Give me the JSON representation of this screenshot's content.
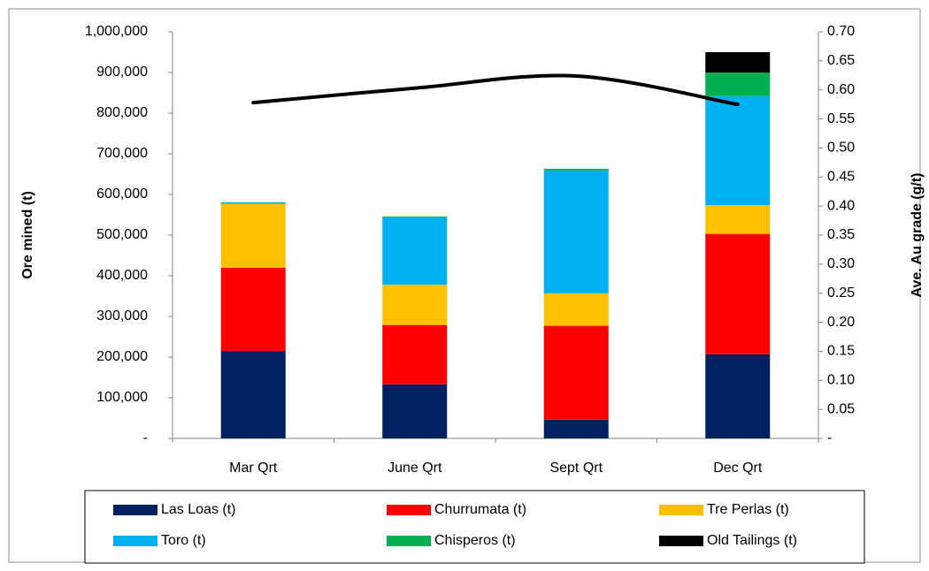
{
  "chart_data": {
    "type": "bar",
    "stacked": true,
    "y_label": "Ore mined (t)",
    "y2_label": "Ave. Au grade (g/t)",
    "categories": [
      "Mar Qrt",
      "June Qrt",
      "Sept Qrt",
      "Dec Qrt"
    ],
    "series": [
      {
        "name": "Las Loas (t)",
        "color": "#002060",
        "values": [
          215000,
          133000,
          46000,
          207000
        ]
      },
      {
        "name": "Churrumata (t)",
        "color": "#ff0000",
        "values": [
          205000,
          146000,
          231000,
          296000
        ]
      },
      {
        "name": "Tre Perlas (t)",
        "color": "#ffc000",
        "values": [
          157000,
          99000,
          80000,
          71000
        ]
      },
      {
        "name": "Toro (t)",
        "color": "#00b0f0",
        "values": [
          3000,
          166000,
          302000,
          268000
        ]
      },
      {
        "name": "Chisperos (t)",
        "color": "#00b050",
        "values": [
          1000,
          2000,
          4000,
          58000
        ]
      },
      {
        "name": "Old Tailings (t)",
        "color": "#000000",
        "values": [
          0,
          0,
          0,
          50000
        ]
      }
    ],
    "line": {
      "type": "line",
      "color": "#000000",
      "axis": "y2",
      "values": [
        0.578,
        0.603,
        0.624,
        0.575
      ]
    },
    "ylim": [
      0,
      1000000
    ],
    "yticks": [
      {
        "value": 0,
        "label": "-"
      },
      {
        "value": 100000,
        "label": "100,000"
      },
      {
        "value": 200000,
        "label": "200,000"
      },
      {
        "value": 300000,
        "label": "300,000"
      },
      {
        "value": 400000,
        "label": "400,000"
      },
      {
        "value": 500000,
        "label": "500,000"
      },
      {
        "value": 600000,
        "label": "600,000"
      },
      {
        "value": 700000,
        "label": "700,000"
      },
      {
        "value": 800000,
        "label": "800,000"
      },
      {
        "value": 900000,
        "label": "900,000"
      },
      {
        "value": 1000000,
        "label": "1,000,000"
      }
    ],
    "y2lim": [
      0,
      0.7
    ],
    "y2ticks": [
      {
        "value": 0,
        "label": "-"
      },
      0.05,
      {
        "value": 0.1,
        "label": "0.10"
      },
      0.15,
      {
        "value": 0.2,
        "label": "0.20"
      },
      0.25,
      {
        "value": 0.3,
        "label": "0.30"
      },
      0.35,
      {
        "value": 0.4,
        "label": "0.40"
      },
      0.45,
      {
        "value": 0.5,
        "label": "0.50"
      },
      0.55,
      {
        "value": 0.6,
        "label": "0.60"
      },
      0.65,
      {
        "value": 0.7,
        "label": "0.70"
      }
    ],
    "grid": false,
    "legend": "bottom"
  }
}
